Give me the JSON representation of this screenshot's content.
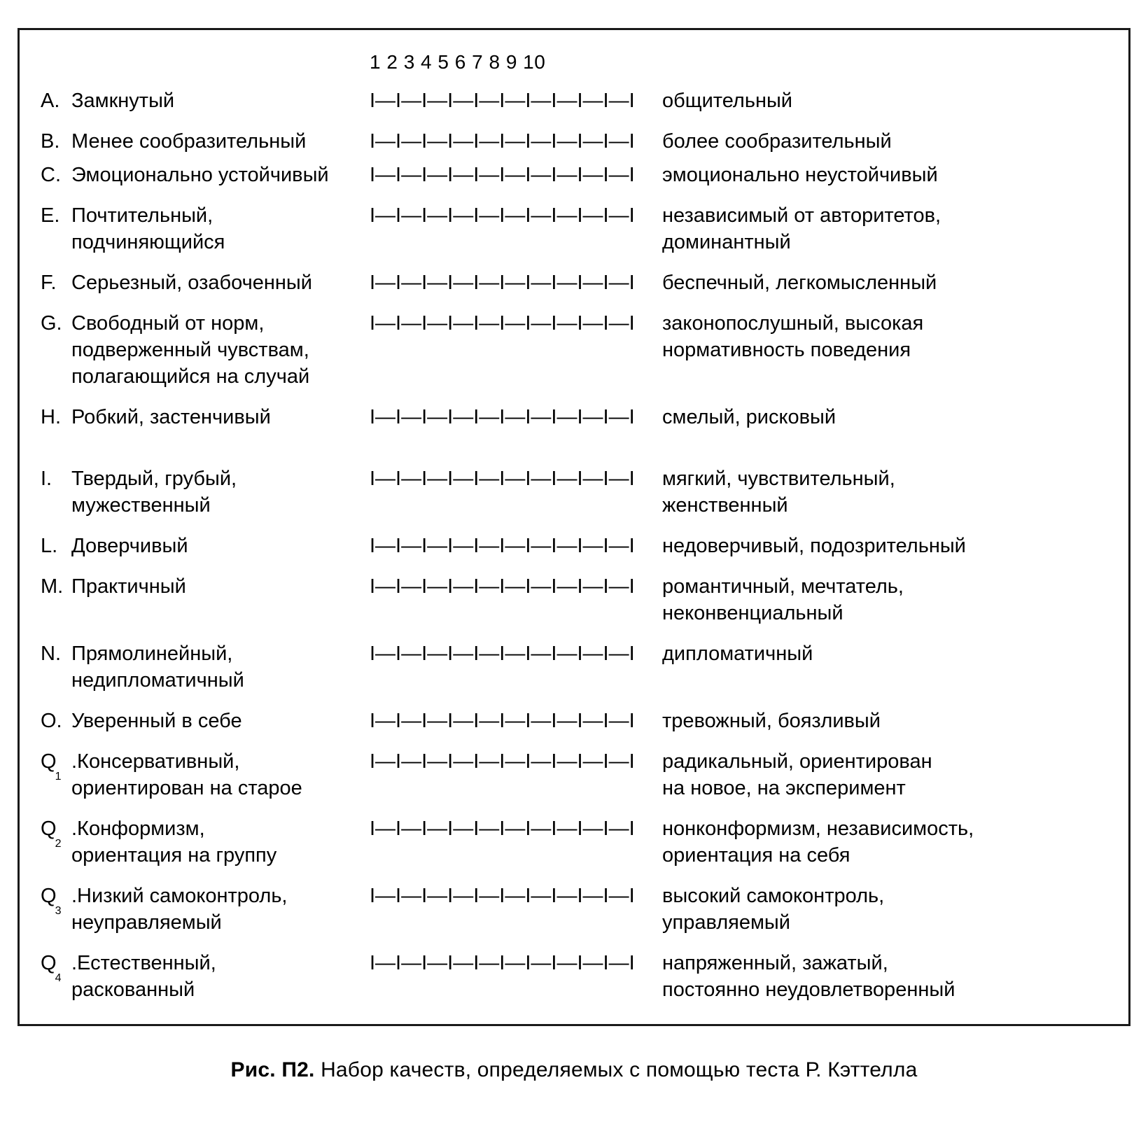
{
  "scale_header_numbers": "1  2  3  4  5  6  7  8  9 10",
  "scale_marks": "I—I—I—I—I—I—I—I—I—I—I",
  "rows": [
    {
      "letter": "A.",
      "sub": "",
      "left": "Замкнутый",
      "right": "общительный",
      "space_before": false,
      "tight": false
    },
    {
      "letter": "B.",
      "sub": "",
      "left": "Менее сообразительный",
      "right": "более сообразительный",
      "space_before": false,
      "tight": false
    },
    {
      "letter": "C.",
      "sub": "",
      "left": "Эмоционально устойчивый",
      "right": "эмоционально неустойчивый",
      "space_before": false,
      "tight": true
    },
    {
      "letter": "E.",
      "sub": "",
      "left": "Почтительный,\nподчиняющийся",
      "right": "независимый от авторитетов,\nдоминантный",
      "space_before": false,
      "tight": false
    },
    {
      "letter": "F.",
      "sub": "",
      "left": "Серьезный, озабоченный",
      "right": "беспечный, легкомысленный",
      "space_before": false,
      "tight": false
    },
    {
      "letter": "G.",
      "sub": "",
      "left": "Свободный от норм,\nподверженный чувствам,\nполагающийся на случай",
      "right": "законопослушный, высокая\nнормативность поведения",
      "space_before": false,
      "tight": false
    },
    {
      "letter": "H.",
      "sub": "",
      "left": "Робкий, застенчивый",
      "right": "смелый, рисковый",
      "space_before": false,
      "tight": false
    },
    {
      "letter": "I.",
      "sub": "",
      "left": "Твердый, грубый,\nмужественный",
      "right": "мягкий, чувствительный,\nженственный",
      "space_before": true,
      "tight": false
    },
    {
      "letter": "L.",
      "sub": "",
      "left": "Доверчивый",
      "right": "недоверчивый, подозрительный",
      "space_before": false,
      "tight": false
    },
    {
      "letter": "M.",
      "sub": "",
      "left": "Практичный",
      "right": "романтичный, мечтатель,\nнеконвенциальный",
      "space_before": false,
      "tight": false
    },
    {
      "letter": "N.",
      "sub": "",
      "left": "Прямолинейный,\nнедипломатичный",
      "right": "дипломатичный",
      "space_before": false,
      "tight": false
    },
    {
      "letter": "O.",
      "sub": "",
      "left": "Уверенный в себе",
      "right": "тревожный, боязливый",
      "space_before": false,
      "tight": false
    },
    {
      "letter": "Q",
      "sub": "1",
      "left": ".Консервативный,\nориентирован на старое",
      "right": "радикальный, ориентирован\nна новое, на эксперимент",
      "space_before": false,
      "tight": false
    },
    {
      "letter": "Q",
      "sub": "2",
      "left": ".Конформизм,\nориентация на группу",
      "right": "нонконформизм, независимость,\nориентация на себя",
      "space_before": false,
      "tight": false
    },
    {
      "letter": "Q",
      "sub": "3",
      "left": ".Низкий самоконтроль,\nнеуправляемый",
      "right": "высокий самоконтроль,\nуправляемый",
      "space_before": false,
      "tight": false
    },
    {
      "letter": "Q",
      "sub": "4",
      "left": ".Естественный,\nраскованный",
      "right": "напряженный, зажатый,\nпостоянно неудовлетворенный",
      "space_before": false,
      "tight": false
    }
  ],
  "caption_label": "Рис. П2.",
  "caption_text": "Набор качеств, определяемых с помощью теста Р. Кэттелла"
}
